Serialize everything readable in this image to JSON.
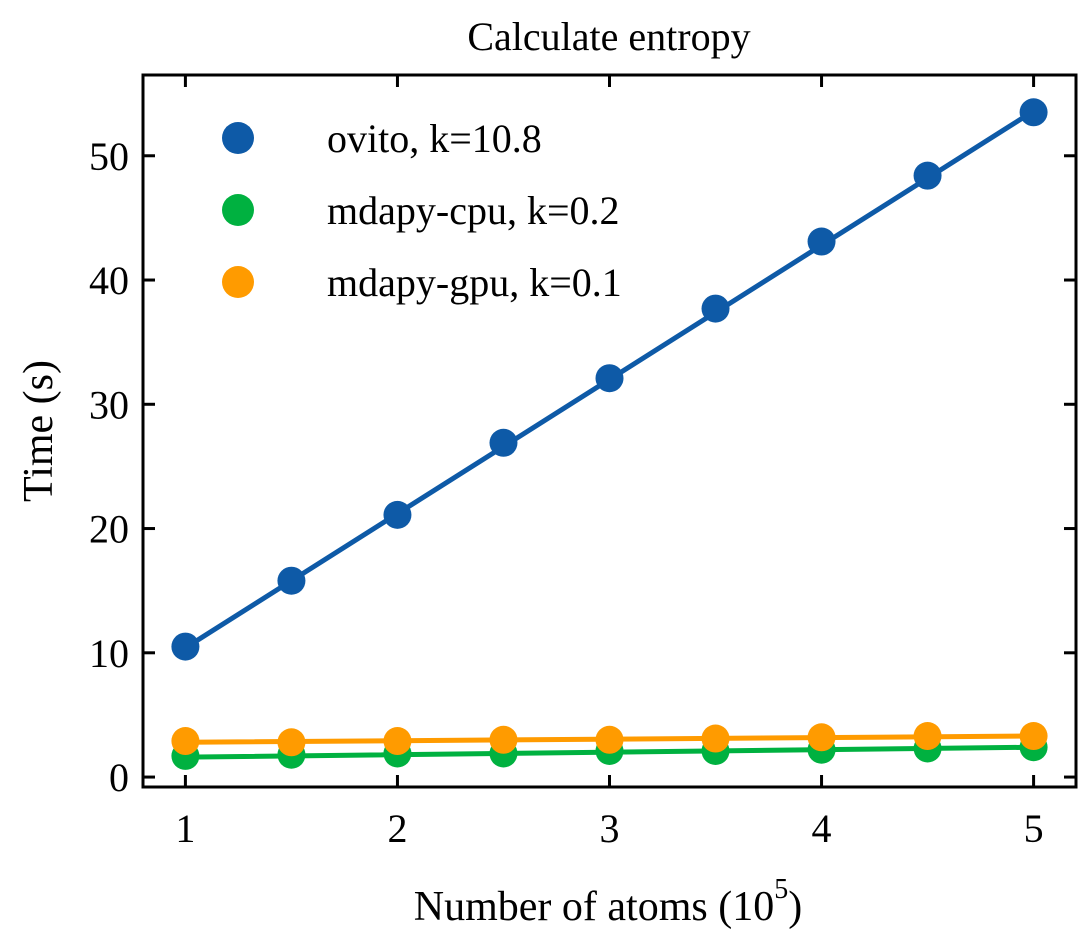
{
  "chart_data": {
    "type": "line",
    "title": "Calculate entropy",
    "xlabel": "Number of atoms (10",
    "xlabel_superscript": "5",
    "xlabel_suffix": ")",
    "ylabel": "Time (s)",
    "xlim": [
      0.8,
      5.2
    ],
    "ylim": [
      -0.8,
      56.5
    ],
    "xticks": [
      1,
      2,
      3,
      4,
      5
    ],
    "yticks": [
      0,
      10,
      20,
      30,
      40,
      50
    ],
    "grid": false,
    "legend_position": "top-left",
    "x": [
      1,
      1.5,
      2,
      2.5,
      3,
      3.5,
      4,
      4.5,
      5
    ],
    "series": [
      {
        "name": "ovito, k=10.8",
        "color": "#0e5aa7",
        "values": [
          10.5,
          15.8,
          21.1,
          26.9,
          32.1,
          37.7,
          43.1,
          48.4,
          53.5
        ],
        "fit": [
          10.4,
          53.6
        ]
      },
      {
        "name": "mdapy-cpu, k=0.2",
        "color": "#00b140",
        "values": [
          1.7,
          1.8,
          1.9,
          1.9,
          2.1,
          2.1,
          2.2,
          2.3,
          2.4
        ],
        "fit": [
          1.6,
          2.4
        ]
      },
      {
        "name": "mdapy-gpu, k=0.1",
        "color": "#ff9b00",
        "values": [
          2.9,
          2.8,
          2.9,
          3.0,
          3.0,
          3.1,
          3.2,
          3.3,
          3.3
        ],
        "fit": [
          2.8,
          3.3
        ]
      }
    ]
  }
}
